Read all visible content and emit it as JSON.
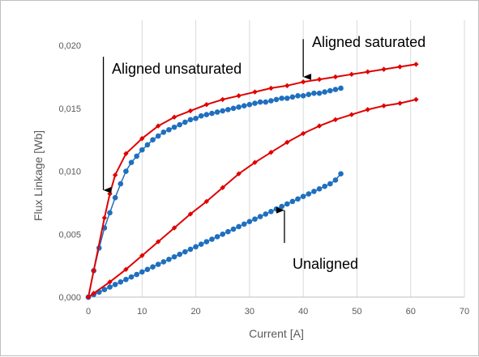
{
  "chart_data": {
    "type": "scatter",
    "title": "",
    "xlabel": "Current [A]",
    "ylabel": "Flux Linkage [Wb]",
    "xlim": [
      0,
      70
    ],
    "ylim": [
      0,
      0.022
    ],
    "x_ticks": [
      "0",
      "10",
      "20",
      "30",
      "40",
      "50",
      "60",
      "70"
    ],
    "y_ticks": [
      "0,000",
      "0,005",
      "0,010",
      "0,015",
      "0,020"
    ],
    "grid": "vertical",
    "series": [
      {
        "color": "#1f6fbf",
        "marker": "circle",
        "x": [
          0,
          1,
          2,
          3,
          4,
          5,
          6,
          7,
          8,
          9,
          10,
          11,
          12,
          13,
          14,
          15,
          16,
          17,
          18,
          19,
          20,
          21,
          22,
          23,
          24,
          25,
          26,
          27,
          28,
          29,
          30,
          31,
          32,
          33,
          34,
          35,
          36,
          37,
          38,
          39,
          40,
          41,
          42,
          43,
          44,
          45,
          46,
          47
        ],
        "y": [
          0,
          0.0021,
          0.0039,
          0.0055,
          0.0067,
          0.0079,
          0.009,
          0.01,
          0.0107,
          0.0112,
          0.0117,
          0.0121,
          0.0125,
          0.0128,
          0.0131,
          0.0133,
          0.0135,
          0.0137,
          0.0139,
          0.0141,
          0.0142,
          0.0144,
          0.0145,
          0.0146,
          0.0147,
          0.0148,
          0.0149,
          0.015,
          0.0151,
          0.0152,
          0.0153,
          0.0154,
          0.0155,
          0.0155,
          0.0156,
          0.0157,
          0.0158,
          0.0158,
          0.0159,
          0.016,
          0.016,
          0.0161,
          0.0162,
          0.0162,
          0.0163,
          0.0164,
          0.0165,
          0.0166
        ]
      },
      {
        "color": "#e00000",
        "marker": "diamond",
        "x": [
          0,
          1,
          3,
          4,
          5,
          7,
          10,
          13,
          16,
          19,
          22,
          25,
          28,
          31,
          34,
          37,
          40,
          43,
          46,
          49,
          52,
          55,
          58,
          61
        ],
        "y": [
          0,
          0.0021,
          0.0063,
          0.0082,
          0.0097,
          0.0114,
          0.0126,
          0.0136,
          0.0143,
          0.0148,
          0.0153,
          0.0157,
          0.016,
          0.0163,
          0.0166,
          0.0168,
          0.0171,
          0.0173,
          0.0175,
          0.0177,
          0.0179,
          0.0181,
          0.0183,
          0.0185
        ]
      },
      {
        "color": "#1f6fbf",
        "marker": "circle",
        "x": [
          0,
          1,
          2,
          3,
          4,
          5,
          6,
          7,
          8,
          9,
          10,
          11,
          12,
          13,
          14,
          15,
          16,
          17,
          18,
          19,
          20,
          21,
          22,
          23,
          24,
          25,
          26,
          27,
          28,
          29,
          30,
          31,
          32,
          33,
          34,
          35,
          36,
          37,
          38,
          39,
          40,
          41,
          42,
          43,
          44,
          45,
          46,
          47
        ],
        "y": [
          0,
          0.0002,
          0.0004,
          0.0006,
          0.0008,
          0.001,
          0.0012,
          0.0014,
          0.0016,
          0.0018,
          0.002,
          0.0022,
          0.0024,
          0.0026,
          0.0028,
          0.003,
          0.0032,
          0.0034,
          0.0036,
          0.0038,
          0.004,
          0.0042,
          0.0044,
          0.0046,
          0.0048,
          0.005,
          0.0052,
          0.0054,
          0.0056,
          0.0058,
          0.006,
          0.0062,
          0.0064,
          0.0066,
          0.0068,
          0.007,
          0.0072,
          0.0074,
          0.0076,
          0.0078,
          0.008,
          0.0082,
          0.0084,
          0.0086,
          0.0088,
          0.009,
          0.0093,
          0.0098
        ]
      },
      {
        "color": "#e00000",
        "marker": "diamond",
        "x": [
          0,
          1,
          4,
          7,
          10,
          13,
          16,
          19,
          22,
          25,
          28,
          31,
          34,
          37,
          40,
          43,
          46,
          49,
          52,
          55,
          58,
          61
        ],
        "y": [
          0,
          0.0003,
          0.0012,
          0.0022,
          0.0033,
          0.0044,
          0.0055,
          0.0066,
          0.0076,
          0.0087,
          0.0098,
          0.0107,
          0.0115,
          0.0123,
          0.013,
          0.0136,
          0.0141,
          0.0145,
          0.0149,
          0.0152,
          0.0154,
          0.0157
        ]
      }
    ],
    "annotations": [
      {
        "text": "Aligned unsaturated",
        "arrow_from": [
          2.8,
          0.0191
        ],
        "arrow_to": [
          2.8,
          0.0085
        ]
      },
      {
        "text": "Aligned saturated",
        "arrow_from": [
          40,
          0.0205
        ],
        "arrow_to": [
          40,
          0.0175
        ]
      },
      {
        "text": "Unaligned",
        "arrow_from": [
          36.5,
          0.0043
        ],
        "arrow_to": [
          36.5,
          0.0069
        ]
      }
    ]
  }
}
